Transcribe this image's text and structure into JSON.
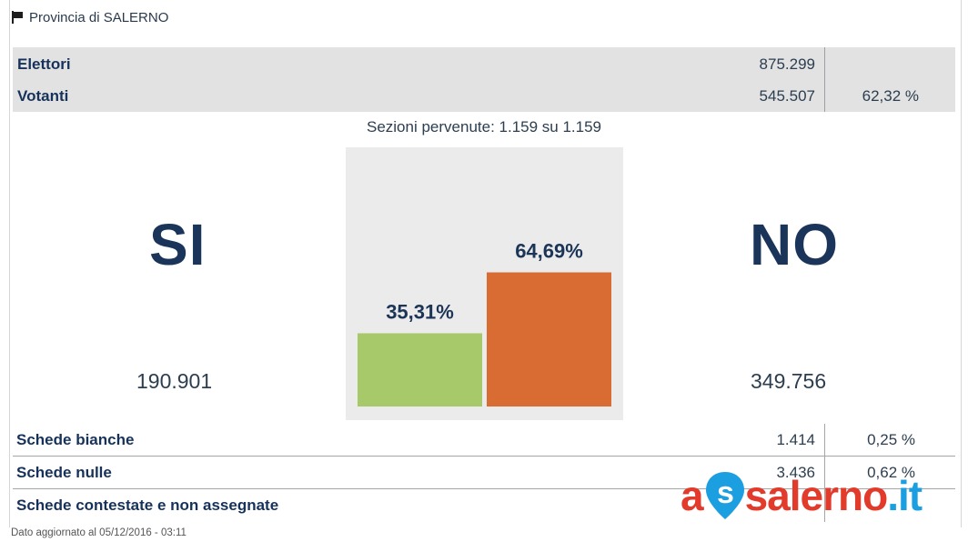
{
  "header": {
    "title": "Provincia di SALERNO",
    "icon": "flag-icon"
  },
  "summary": {
    "rows": [
      {
        "label": "Elettori",
        "value": "875.299",
        "pct": ""
      },
      {
        "label": "Votanti",
        "value": "545.507",
        "pct": "62,32 %"
      }
    ]
  },
  "sezioni": "Sezioni pervenute: 1.159 su 1.159",
  "si": {
    "label": "SI",
    "count": "190.901"
  },
  "no": {
    "label": "NO",
    "count": "349.756"
  },
  "chart_data": {
    "type": "bar",
    "categories": [
      "SI",
      "NO"
    ],
    "values": [
      35.31,
      64.69
    ],
    "value_labels": [
      "35,31%",
      "64,69%"
    ],
    "colors": [
      "#a7c96a",
      "#d86c32"
    ],
    "ylim": [
      0,
      100
    ]
  },
  "schede": [
    {
      "label": "Schede bianche",
      "value": "1.414",
      "pct": "0,25 %"
    },
    {
      "label": "Schede nulle",
      "value": "3.436",
      "pct": "0,62 %"
    },
    {
      "label": "Schede contestate e non assegnate",
      "value": "",
      "pct": ""
    }
  ],
  "footer": "Dato aggiornato al 05/12/2016 - 03:11",
  "watermark": {
    "prefix": "a",
    "middle": "salerno",
    "dot": ".",
    "tld": "it",
    "icon": "location-pin-icon"
  }
}
